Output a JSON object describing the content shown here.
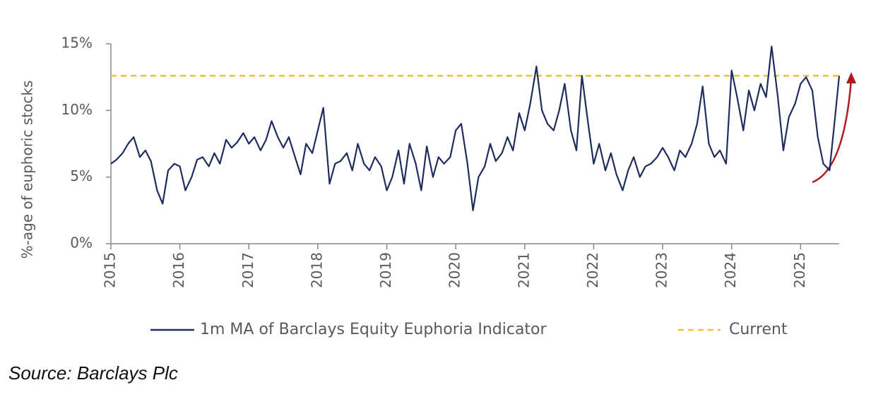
{
  "chart_data": {
    "type": "line",
    "ylabel": "%-age of euphoric stocks",
    "source": "Source: Barclays Plc",
    "xlim": [
      2015,
      2025.56
    ],
    "xticks": [
      2015,
      2016,
      2017,
      2018,
      2019,
      2020,
      2021,
      2022,
      2023,
      2024,
      2025
    ],
    "ylim": [
      0,
      15
    ],
    "yticks": [
      {
        "value": 0,
        "label": "0%"
      },
      {
        "value": 5,
        "label": "5%"
      },
      {
        "value": 10,
        "label": "10%"
      },
      {
        "value": 15,
        "label": "15%"
      }
    ],
    "x": [
      2015.0,
      2015.08,
      2015.17,
      2015.25,
      2015.33,
      2015.42,
      2015.5,
      2015.58,
      2015.67,
      2015.75,
      2015.83,
      2015.92,
      2016.0,
      2016.08,
      2016.17,
      2016.25,
      2016.33,
      2016.42,
      2016.5,
      2016.58,
      2016.67,
      2016.75,
      2016.83,
      2016.92,
      2017.0,
      2017.08,
      2017.17,
      2017.25,
      2017.33,
      2017.42,
      2017.5,
      2017.58,
      2017.67,
      2017.75,
      2017.83,
      2017.92,
      2018.0,
      2018.08,
      2018.17,
      2018.25,
      2018.33,
      2018.42,
      2018.5,
      2018.58,
      2018.67,
      2018.75,
      2018.83,
      2018.92,
      2019.0,
      2019.08,
      2019.17,
      2019.25,
      2019.33,
      2019.42,
      2019.5,
      2019.58,
      2019.67,
      2019.75,
      2019.83,
      2019.92,
      2020.0,
      2020.08,
      2020.17,
      2020.25,
      2020.33,
      2020.42,
      2020.5,
      2020.58,
      2020.67,
      2020.75,
      2020.83,
      2020.92,
      2021.0,
      2021.08,
      2021.17,
      2021.25,
      2021.33,
      2021.42,
      2021.5,
      2021.58,
      2021.67,
      2021.75,
      2021.83,
      2021.92,
      2022.0,
      2022.08,
      2022.17,
      2022.25,
      2022.33,
      2022.42,
      2022.5,
      2022.58,
      2022.67,
      2022.75,
      2022.83,
      2022.92,
      2023.0,
      2023.08,
      2023.17,
      2023.25,
      2023.33,
      2023.42,
      2023.5,
      2023.58,
      2023.67,
      2023.75,
      2023.83,
      2023.92,
      2024.0,
      2024.08,
      2024.17,
      2024.25,
      2024.33,
      2024.42,
      2024.5,
      2024.58,
      2024.67,
      2024.75,
      2024.83,
      2024.92,
      2025.0,
      2025.08,
      2025.17,
      2025.25,
      2025.33,
      2025.42,
      2025.5,
      2025.56
    ],
    "series": [
      {
        "name": "1m MA of Barclays Equity Euphoria Indicator",
        "color": "#1f2d5e",
        "values": [
          6.0,
          6.3,
          6.8,
          7.5,
          8.0,
          6.5,
          7.0,
          6.2,
          4.0,
          3.0,
          5.5,
          6.0,
          5.8,
          4.0,
          5.0,
          6.3,
          6.5,
          5.8,
          6.8,
          6.0,
          7.8,
          7.2,
          7.6,
          8.3,
          7.5,
          8.0,
          7.0,
          7.8,
          9.2,
          8.0,
          7.2,
          8.0,
          6.5,
          5.2,
          7.5,
          6.8,
          8.5,
          10.2,
          4.5,
          6.0,
          6.2,
          6.8,
          5.5,
          7.5,
          6.0,
          5.5,
          6.5,
          5.8,
          4.0,
          5.0,
          7.0,
          4.5,
          7.5,
          6.0,
          4.0,
          7.3,
          5.0,
          6.5,
          6.0,
          6.5,
          8.5,
          9.0,
          6.0,
          2.5,
          5.0,
          5.8,
          7.5,
          6.2,
          6.8,
          8.0,
          7.0,
          9.8,
          8.5,
          10.5,
          13.3,
          10.0,
          9.0,
          8.5,
          10.0,
          12.0,
          8.5,
          7.0,
          12.6,
          9.0,
          6.0,
          7.5,
          5.5,
          6.8,
          5.2,
          4.0,
          5.5,
          6.5,
          5.0,
          5.8,
          6.0,
          6.5,
          7.2,
          6.5,
          5.5,
          7.0,
          6.5,
          7.5,
          9.0,
          11.8,
          7.5,
          6.5,
          7.0,
          6.0,
          13.0,
          11.0,
          8.5,
          11.5,
          10.0,
          12.0,
          11.0,
          14.8,
          11.0,
          7.0,
          9.5,
          10.5,
          12.0,
          12.5,
          11.5,
          8.0,
          6.0,
          5.5,
          9.5,
          12.6
        ]
      }
    ],
    "reference_lines": [
      {
        "name": "Current",
        "value": 12.6,
        "color": "#f2c230",
        "dashed": true
      }
    ]
  }
}
